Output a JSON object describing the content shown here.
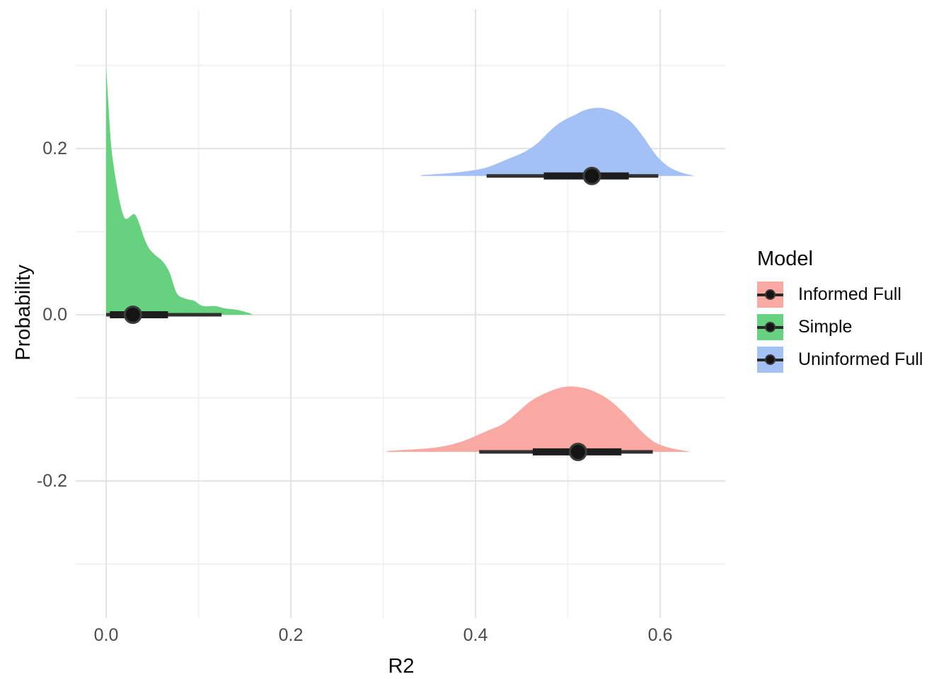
{
  "axes": {
    "x_title": "R2",
    "y_title": "Probability",
    "x_ticks": [
      "0.0",
      "0.2",
      "0.4",
      "0.6"
    ],
    "y_ticks": [
      "0.2",
      "0.0",
      "-0.2"
    ]
  },
  "legend": {
    "title": "Model",
    "items": [
      {
        "label": "Informed Full",
        "color": "#F9A8A2"
      },
      {
        "label": "Simple",
        "color": "#66D17E"
      },
      {
        "label": "Uninformed Full",
        "color": "#A4C1F5"
      }
    ]
  },
  "chart_data": {
    "type": "area",
    "subtype": "halfeye_density_with_median_intervals",
    "orientation": "horizontal_ridges",
    "title": "",
    "xlabel": "R2",
    "ylabel": "Probability",
    "xlim": [
      -0.033,
      0.67
    ],
    "ylim": [
      -0.365,
      0.368
    ],
    "x_major_ticks": [
      0.0,
      0.2,
      0.4,
      0.6
    ],
    "x_minor_ticks": [
      0.1,
      0.3,
      0.5
    ],
    "y_major_ticks": [
      0.2,
      0.0,
      -0.2
    ],
    "y_minor_ticks": [
      0.3,
      0.1,
      -0.1,
      -0.3
    ],
    "grid": true,
    "legend_position": "right",
    "legend_title": "Model",
    "series": [
      {
        "name": "Simple",
        "color": "#66D17E",
        "baseline_y": 0.0,
        "point_estimate": 0.029,
        "interval_thick": [
          0.004,
          0.067
        ],
        "interval_thin": [
          0.0,
          0.125
        ],
        "density": {
          "x": [
            0.0,
            0.002,
            0.004,
            0.006,
            0.009,
            0.012,
            0.015,
            0.018,
            0.021,
            0.026,
            0.031,
            0.036,
            0.041,
            0.046,
            0.051,
            0.055,
            0.06,
            0.065,
            0.07,
            0.075,
            0.079,
            0.084,
            0.09,
            0.096,
            0.102,
            0.11,
            0.118,
            0.126,
            0.134,
            0.142,
            0.149,
            0.155,
            0.159
          ],
          "height": [
            0.298,
            0.262,
            0.224,
            0.196,
            0.172,
            0.152,
            0.134,
            0.121,
            0.114,
            0.118,
            0.123,
            0.11,
            0.092,
            0.08,
            0.074,
            0.07,
            0.066,
            0.059,
            0.048,
            0.028,
            0.022,
            0.02,
            0.018,
            0.017,
            0.011,
            0.01,
            0.011,
            0.008,
            0.007,
            0.006,
            0.004,
            0.002,
            0.0
          ]
        }
      },
      {
        "name": "Uninformed Full",
        "color": "#A4C1F5",
        "baseline_y": 0.167,
        "point_estimate": 0.526,
        "interval_thick": [
          0.474,
          0.566
        ],
        "interval_thin": [
          0.412,
          0.598
        ],
        "density": {
          "x": [
            0.341,
            0.355,
            0.37,
            0.385,
            0.4,
            0.412,
            0.424,
            0.436,
            0.448,
            0.458,
            0.467,
            0.475,
            0.483,
            0.491,
            0.499,
            0.507,
            0.515,
            0.523,
            0.53,
            0.537,
            0.545,
            0.553,
            0.56,
            0.568,
            0.575,
            0.582,
            0.589,
            0.596,
            0.604,
            0.612,
            0.62,
            0.63,
            0.638
          ],
          "height": [
            0.001,
            0.002,
            0.003,
            0.005,
            0.007,
            0.01,
            0.015,
            0.021,
            0.026,
            0.032,
            0.039,
            0.048,
            0.057,
            0.064,
            0.069,
            0.073,
            0.078,
            0.081,
            0.082,
            0.082,
            0.08,
            0.077,
            0.072,
            0.066,
            0.057,
            0.047,
            0.035,
            0.024,
            0.015,
            0.009,
            0.005,
            0.002,
            0.0
          ]
        }
      },
      {
        "name": "Informed Full",
        "color": "#F9A8A2",
        "baseline_y": -0.165,
        "point_estimate": 0.511,
        "interval_thick": [
          0.462,
          0.558
        ],
        "interval_thin": [
          0.404,
          0.592
        ],
        "density": {
          "x": [
            0.304,
            0.318,
            0.333,
            0.348,
            0.362,
            0.375,
            0.387,
            0.398,
            0.408,
            0.416,
            0.424,
            0.432,
            0.44,
            0.449,
            0.458,
            0.467,
            0.476,
            0.485,
            0.494,
            0.503,
            0.512,
            0.521,
            0.53,
            0.539,
            0.548,
            0.557,
            0.566,
            0.575,
            0.584,
            0.593,
            0.603,
            0.613,
            0.623,
            0.634
          ],
          "height": [
            0.001,
            0.002,
            0.003,
            0.004,
            0.006,
            0.009,
            0.013,
            0.018,
            0.023,
            0.027,
            0.03,
            0.035,
            0.042,
            0.051,
            0.06,
            0.066,
            0.071,
            0.075,
            0.078,
            0.079,
            0.078,
            0.076,
            0.072,
            0.067,
            0.06,
            0.051,
            0.041,
            0.03,
            0.02,
            0.012,
            0.007,
            0.004,
            0.002,
            0.0
          ]
        }
      }
    ]
  }
}
